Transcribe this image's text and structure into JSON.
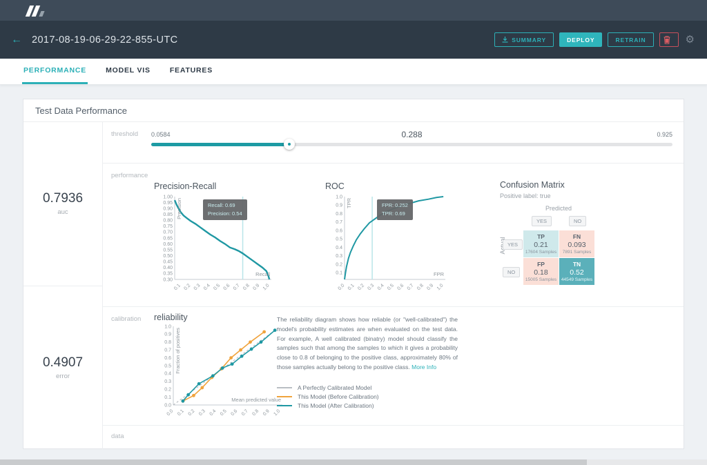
{
  "header": {
    "logo": "app-logo",
    "run_title": "2017-08-19-06-29-22-855-UTC",
    "buttons": {
      "summary": "SUMMARY",
      "deploy": "DEPLOY",
      "retrain": "RETRAIN"
    }
  },
  "tabs": [
    {
      "label": "PERFORMANCE",
      "active": true
    },
    {
      "label": "MODEL VIS",
      "active": false
    },
    {
      "label": "FEATURES",
      "active": false
    }
  ],
  "panel": {
    "title": "Test Data Performance",
    "section_labels": {
      "threshold": "threshold",
      "performance": "performance",
      "calibration": "calibration",
      "data": "data"
    }
  },
  "stats": {
    "auc": {
      "value": "0.7936",
      "label": "auc"
    },
    "error": {
      "value": "0.4907",
      "label": "error"
    }
  },
  "threshold": {
    "min": 0.0584,
    "current": 0.288,
    "max": 0.925,
    "min_label": "0.0584",
    "current_label": "0.288",
    "max_label": "0.925"
  },
  "confusion_matrix": {
    "title": "Confusion Matrix",
    "subtitle": "Positive label: true",
    "predicted_axis": "Predicted",
    "actual_axis": "Actual",
    "predicted_labels": [
      "YES",
      "NO"
    ],
    "actual_labels": [
      "YES",
      "NO"
    ],
    "cells": [
      {
        "name": "TP",
        "value": "0.21",
        "samples": "17604 Samples",
        "bg": "#cfe9eb",
        "dark": false
      },
      {
        "name": "FN",
        "value": "0.093",
        "samples": "7891 Samples",
        "bg": "#fbdfd7",
        "dark": false
      },
      {
        "name": "FP",
        "value": "0.18",
        "samples": "15005 Samples",
        "bg": "#fbdfd7",
        "dark": false
      },
      {
        "name": "TN",
        "value": "0.52",
        "samples": "44549 Samples",
        "bg": "#5bb0ba",
        "dark": true
      }
    ]
  },
  "calibration": {
    "title": "reliability",
    "description": "The reliability diagram shows how reliable (or \"well-calibrated\") the model's probability estimates are when evaluated on the test data. For example, A well calibrated (binatry) model should classify the samples such that among the samples to which it gives a probability close to 0.8 of belonging to the positive class, approximately 80% of those samples actually belong to the positive class. ",
    "link": "More Info",
    "legend": [
      {
        "label": "A Perfectly Calibrated Model",
        "color": "#b9bec3"
      },
      {
        "label": "This Model (Before Calibration)",
        "color": "#f0a33c"
      },
      {
        "label": "This Model (After Calibration)",
        "color": "#1f98a3"
      }
    ]
  },
  "colors": {
    "accent": "#2cb1b8",
    "danger": "#d95c63",
    "chart_teal": "#1f98a3",
    "chart_orange": "#f0a33c",
    "refline": "#b9e5e9"
  },
  "scrollbar": {
    "thumb_pct": 83
  },
  "chart_data": [
    {
      "id": "precision_recall",
      "type": "line",
      "title": "Precision-Recall",
      "xlabel": "Recall",
      "ylabel": "Precision",
      "xlim": [
        0.04,
        1.02
      ],
      "ylim": [
        0.3,
        1.0
      ],
      "xticks": [
        "0.1",
        "0.2",
        "0.3",
        "0.4",
        "0.5",
        "0.6",
        "0.7",
        "0.8",
        "0.9",
        "1.0"
      ],
      "yticks": [
        "1.00",
        "0.95",
        "0.90",
        "0.85",
        "0.80",
        "0.75",
        "0.70",
        "0.65",
        "0.60",
        "0.55",
        "0.50",
        "0.45",
        "0.40",
        "0.35",
        "0.30"
      ],
      "ref_x": 0.73,
      "tooltip": [
        "Recall: 0.69",
        "Precision: 0.54"
      ],
      "series": [
        {
          "name": "precision-recall-curve",
          "color": "#1f98a3",
          "width": 2.4,
          "points": [
            [
              0.04,
              0.97
            ],
            [
              0.06,
              0.93
            ],
            [
              0.08,
              0.9
            ],
            [
              0.1,
              0.87
            ],
            [
              0.13,
              0.84
            ],
            [
              0.16,
              0.82
            ],
            [
              0.2,
              0.795
            ],
            [
              0.25,
              0.77
            ],
            [
              0.3,
              0.74
            ],
            [
              0.35,
              0.71
            ],
            [
              0.4,
              0.68
            ],
            [
              0.45,
              0.655
            ],
            [
              0.5,
              0.625
            ],
            [
              0.55,
              0.6
            ],
            [
              0.6,
              0.57
            ],
            [
              0.65,
              0.555
            ],
            [
              0.69,
              0.54
            ],
            [
              0.73,
              0.52
            ],
            [
              0.78,
              0.49
            ],
            [
              0.83,
              0.46
            ],
            [
              0.88,
              0.43
            ],
            [
              0.93,
              0.4
            ],
            [
              0.97,
              0.37
            ],
            [
              0.99,
              0.33
            ],
            [
              1.0,
              0.3
            ]
          ]
        }
      ]
    },
    {
      "id": "roc",
      "type": "line",
      "title": "ROC",
      "xlabel": "FPR",
      "ylabel": "TPR",
      "xlim": [
        0.0,
        1.02
      ],
      "ylim": [
        0.02,
        1.0
      ],
      "xticks": [
        "0.0",
        "0.1",
        "0.2",
        "0.3",
        "0.4",
        "0.5",
        "0.6",
        "0.7",
        "0.8",
        "0.9",
        "1.0"
      ],
      "yticks": [
        "1.0",
        "0.9",
        "0.8",
        "0.7",
        "0.6",
        "0.5",
        "0.4",
        "0.3",
        "0.2",
        "0.1"
      ],
      "ref_x": 0.28,
      "tooltip": [
        "FPR: 0.252",
        "TPR: 0.69"
      ],
      "series": [
        {
          "name": "roc-curve",
          "color": "#1f98a3",
          "width": 2.0,
          "points": [
            [
              0.0,
              0.02
            ],
            [
              0.01,
              0.1
            ],
            [
              0.02,
              0.17
            ],
            [
              0.04,
              0.27
            ],
            [
              0.06,
              0.34
            ],
            [
              0.09,
              0.42
            ],
            [
              0.12,
              0.49
            ],
            [
              0.16,
              0.56
            ],
            [
              0.2,
              0.62
            ],
            [
              0.252,
              0.69
            ],
            [
              0.3,
              0.73
            ],
            [
              0.36,
              0.78
            ],
            [
              0.42,
              0.82
            ],
            [
              0.5,
              0.86
            ],
            [
              0.58,
              0.89
            ],
            [
              0.66,
              0.92
            ],
            [
              0.75,
              0.95
            ],
            [
              0.85,
              0.97
            ],
            [
              0.93,
              0.99
            ],
            [
              1.0,
              1.0
            ]
          ]
        }
      ]
    },
    {
      "id": "reliability",
      "type": "line",
      "title": "reliability",
      "xlabel": "Mean predicted value",
      "ylabel": "Fraction of positives",
      "xlim": [
        0.0,
        1.02
      ],
      "ylim": [
        0.0,
        1.0
      ],
      "xticks": [
        "0.0",
        "0.1",
        "0.2",
        "0.3",
        "0.4",
        "0.5",
        "0.6",
        "0.7",
        "0.8",
        "0.9",
        "1.0"
      ],
      "yticks": [
        "1.0",
        "0.9",
        "0.8",
        "0.7",
        "0.6",
        "0.5",
        "0.4",
        "0.3",
        "0.2",
        "0.1",
        "0.0"
      ],
      "series": [
        {
          "name": "A Perfectly Calibrated Model",
          "color": "#b9bec3",
          "width": 1.2,
          "dash": true,
          "points": [
            [
              0.0,
              0.0
            ],
            [
              1.0,
              1.0
            ]
          ]
        },
        {
          "name": "This Model (Before Calibration)",
          "color": "#f0a33c",
          "width": 1.6,
          "markers": true,
          "points": [
            [
              0.09,
              0.05
            ],
            [
              0.19,
              0.12
            ],
            [
              0.27,
              0.22
            ],
            [
              0.36,
              0.35
            ],
            [
              0.45,
              0.46
            ],
            [
              0.54,
              0.6
            ],
            [
              0.63,
              0.7
            ],
            [
              0.72,
              0.8
            ],
            [
              0.85,
              0.93
            ]
          ]
        },
        {
          "name": "This Model (After Calibration)",
          "color": "#1f98a3",
          "width": 1.6,
          "markers": true,
          "points": [
            [
              0.09,
              0.05
            ],
            [
              0.14,
              0.13
            ],
            [
              0.24,
              0.27
            ],
            [
              0.37,
              0.37
            ],
            [
              0.46,
              0.47
            ],
            [
              0.55,
              0.52
            ],
            [
              0.64,
              0.62
            ],
            [
              0.73,
              0.71
            ],
            [
              0.82,
              0.8
            ],
            [
              0.95,
              0.95
            ]
          ]
        }
      ]
    }
  ]
}
